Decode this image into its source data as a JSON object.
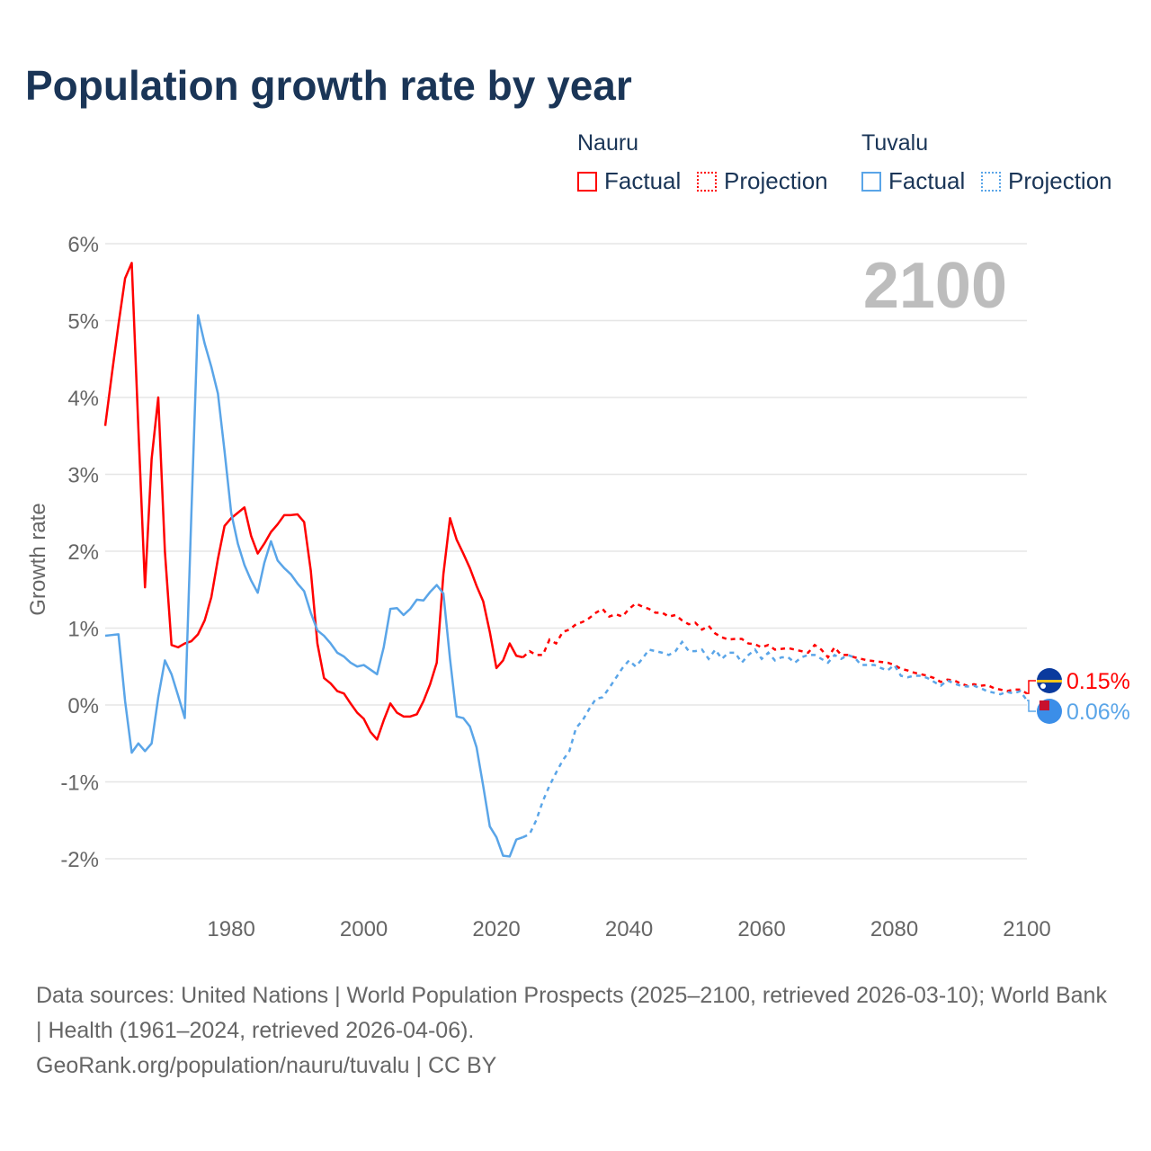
{
  "title": "Population growth rate by year",
  "legend": {
    "groups": [
      {
        "name": "Nauru",
        "color": "#ff0000",
        "factual": "Factual",
        "projection": "Projection"
      },
      {
        "name": "Tuvalu",
        "color": "#5aa5e8",
        "factual": "Factual",
        "projection": "Projection"
      }
    ]
  },
  "footer": {
    "line1": "Data sources: United Nations | World Population Prospects (2025–2100, retrieved 2026-03-10); World Bank | Health (1961–2024, retrieved 2026-04-06).",
    "line2": "GeoRank.org/population/nauru/tuvalu | CC BY"
  },
  "chart_data": {
    "type": "line",
    "title": "Population growth rate by year",
    "xlabel": "",
    "ylabel": "Growth rate",
    "year_label": "2100",
    "xlim": [
      1961,
      2100
    ],
    "ylim": [
      -2,
      6
    ],
    "x_ticks": [
      "1980",
      "2000",
      "2020",
      "2040",
      "2060",
      "2080",
      "2100"
    ],
    "y_ticks": [
      "-2%",
      "-1%",
      "0%",
      "1%",
      "2%",
      "3%",
      "4%",
      "5%",
      "6%"
    ],
    "factual_years": [
      1961,
      2024
    ],
    "projection_years": [
      2025,
      2100
    ],
    "series": [
      {
        "name": "Nauru",
        "color": "#ff0000",
        "end_label": "0.15%",
        "factual": [
          3.63,
          4.3,
          4.95,
          5.55,
          5.75,
          3.6,
          1.53,
          3.2,
          4.0,
          2.0,
          0.78,
          0.75,
          0.8,
          0.83,
          0.92,
          1.1,
          1.4,
          1.9,
          2.33,
          2.43,
          2.5,
          2.57,
          2.2,
          1.97,
          2.1,
          2.25,
          2.35,
          2.47,
          2.47,
          2.48,
          2.38,
          1.75,
          0.8,
          0.35,
          0.28,
          0.18,
          0.15,
          0.02,
          -0.1,
          -0.18,
          -0.35,
          -0.45,
          -0.2,
          0.02,
          -0.1,
          -0.15,
          -0.15,
          -0.12,
          0.05,
          0.27,
          0.55,
          1.7,
          2.43,
          2.15,
          1.97,
          1.78,
          1.55,
          1.35,
          0.95,
          0.48,
          0.58,
          0.8,
          0.64,
          0.62
        ],
        "projection": [
          0.7,
          0.65,
          0.65,
          0.85,
          0.8,
          0.95,
          0.98,
          1.05,
          1.08,
          1.13,
          1.2,
          1.25,
          1.15,
          1.18,
          1.15,
          1.25,
          1.32,
          1.28,
          1.25,
          1.2,
          1.2,
          1.15,
          1.17,
          1.1,
          1.05,
          1.07,
          0.98,
          1.03,
          0.93,
          0.88,
          0.85,
          0.86,
          0.86,
          0.8,
          0.79,
          0.75,
          0.78,
          0.72,
          0.73,
          0.74,
          0.72,
          0.7,
          0.68,
          0.78,
          0.72,
          0.62,
          0.75,
          0.65,
          0.65,
          0.62,
          0.6,
          0.58,
          0.57,
          0.56,
          0.55,
          0.52,
          0.47,
          0.45,
          0.42,
          0.4,
          0.38,
          0.35,
          0.3,
          0.33,
          0.32,
          0.28,
          0.25,
          0.27,
          0.25,
          0.26,
          0.22,
          0.2,
          0.18,
          0.2,
          0.2,
          0.15
        ]
      },
      {
        "name": "Tuvalu",
        "color": "#5aa5e8",
        "end_label": "0.06%",
        "factual": [
          0.9,
          0.91,
          0.92,
          0.05,
          -0.62,
          -0.5,
          -0.6,
          -0.5,
          0.1,
          0.58,
          0.4,
          0.12,
          -0.17,
          2.5,
          5.07,
          4.7,
          4.4,
          4.05,
          3.3,
          2.5,
          2.1,
          1.82,
          1.62,
          1.46,
          1.85,
          2.13,
          1.88,
          1.78,
          1.7,
          1.58,
          1.48,
          1.2,
          0.97,
          0.9,
          0.8,
          0.68,
          0.63,
          0.55,
          0.5,
          0.52,
          0.46,
          0.4,
          0.75,
          1.25,
          1.26,
          1.17,
          1.25,
          1.37,
          1.36,
          1.47,
          1.56,
          1.45,
          0.6,
          -0.15,
          -0.17,
          -0.28,
          -0.55,
          -1.05,
          -1.58,
          -1.72,
          -1.96,
          -1.97,
          -1.75,
          -1.72
        ],
        "projection": [
          -1.68,
          -1.5,
          -1.25,
          -1.05,
          -0.88,
          -0.72,
          -0.6,
          -0.3,
          -0.2,
          -0.05,
          0.08,
          0.1,
          0.22,
          0.35,
          0.48,
          0.58,
          0.5,
          0.6,
          0.72,
          0.7,
          0.68,
          0.65,
          0.7,
          0.82,
          0.7,
          0.7,
          0.72,
          0.6,
          0.72,
          0.6,
          0.68,
          0.68,
          0.55,
          0.65,
          0.72,
          0.6,
          0.68,
          0.58,
          0.62,
          0.62,
          0.55,
          0.62,
          0.65,
          0.65,
          0.6,
          0.55,
          0.65,
          0.6,
          0.65,
          0.62,
          0.52,
          0.52,
          0.52,
          0.48,
          0.45,
          0.52,
          0.38,
          0.36,
          0.38,
          0.38,
          0.35,
          0.3,
          0.25,
          0.32,
          0.28,
          0.25,
          0.24,
          0.25,
          0.22,
          0.18,
          0.16,
          0.14,
          0.17,
          0.15,
          0.18,
          0.06
        ]
      }
    ]
  }
}
